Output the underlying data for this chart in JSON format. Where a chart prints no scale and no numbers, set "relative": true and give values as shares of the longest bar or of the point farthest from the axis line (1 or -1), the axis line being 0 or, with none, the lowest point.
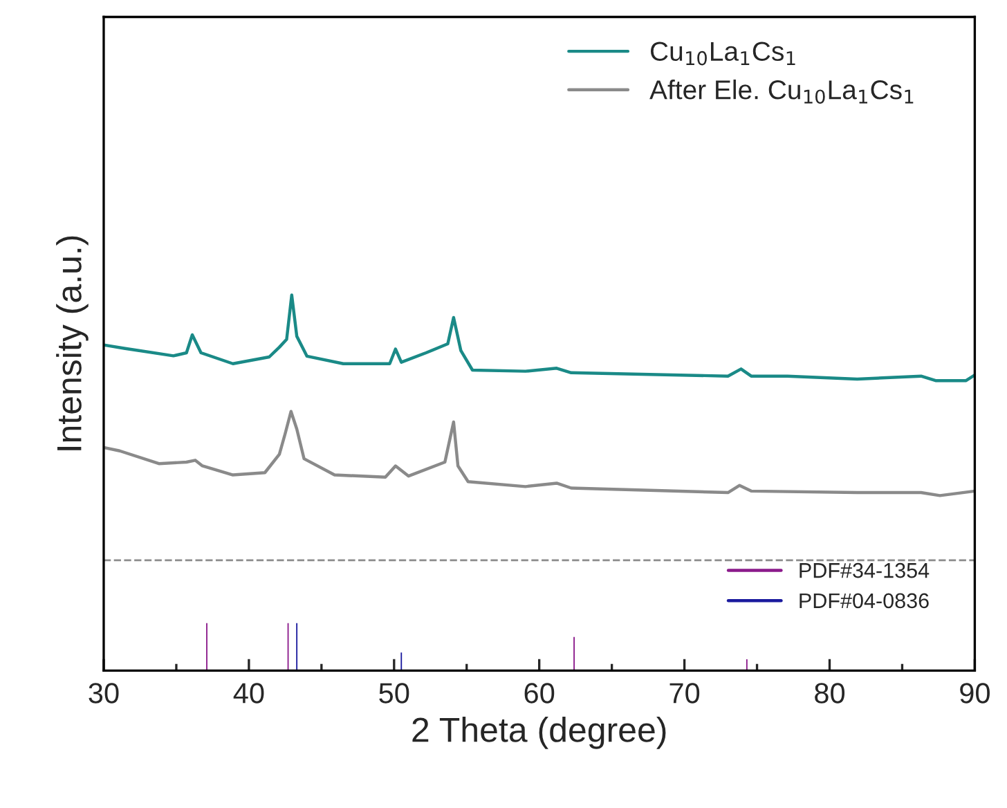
{
  "chart_data": {
    "type": "line",
    "relative": true,
    "xlabel": "2 Theta (degree)",
    "ylabel": "Intensity (a.u.)",
    "xlim": [
      30,
      90
    ],
    "xticks": [
      30,
      40,
      50,
      60,
      70,
      80,
      90
    ],
    "tick_labels": "x",
    "grid": false,
    "legend": "top right",
    "line_style": "solid",
    "marker": "none",
    "ref_lines": [
      {
        "axis": "y",
        "value": 0.294,
        "color": "#8c8c8c",
        "line_style": "dashed"
      }
    ],
    "series": [
      {
        "name": "Cu$_{10}$La$_{1}$Cs$_{1}$",
        "color": "#1a8a87",
        "x": [
          30,
          31.4,
          34.8,
          35.7,
          36.1,
          36.7,
          38.9,
          41.4,
          42.1,
          42.6,
          42.95,
          43.3,
          44.0,
          46.5,
          49.7,
          50.1,
          50.5,
          52.2,
          53.7,
          54.1,
          54.6,
          55.4,
          59.05,
          61.2,
          62.2,
          73.0,
          73.9,
          74.6,
          77.1,
          81.9,
          86.3,
          87.3,
          89.4,
          90
        ],
        "values": [
          0.867,
          0.858,
          0.838,
          0.846,
          0.894,
          0.846,
          0.817,
          0.835,
          0.861,
          0.882,
          1.0,
          0.89,
          0.837,
          0.817,
          0.817,
          0.856,
          0.821,
          0.846,
          0.87,
          0.94,
          0.852,
          0.8,
          0.797,
          0.805,
          0.793,
          0.784,
          0.803,
          0.784,
          0.784,
          0.776,
          0.784,
          0.772,
          0.772,
          0.787
        ]
      },
      {
        "name": "After Ele. Cu$_{10}$La$_{1}$Cs$_{1}$",
        "color": "#8a8a8a",
        "x": [
          30,
          31.1,
          33.8,
          35.7,
          36.3,
          36.8,
          38.9,
          41.1,
          42.1,
          42.5,
          42.9,
          43.3,
          43.8,
          45.9,
          49.4,
          50.1,
          51.0,
          53.5,
          54.1,
          54.4,
          55.1,
          59.05,
          61.2,
          62.2,
          73.0,
          73.8,
          74.6,
          81.9,
          86.3,
          87.6,
          90
        ],
        "values": [
          0.594,
          0.585,
          0.551,
          0.555,
          0.56,
          0.545,
          0.521,
          0.527,
          0.576,
          0.631,
          0.69,
          0.643,
          0.564,
          0.521,
          0.515,
          0.545,
          0.518,
          0.555,
          0.662,
          0.545,
          0.503,
          0.49,
          0.499,
          0.486,
          0.474,
          0.493,
          0.478,
          0.474,
          0.474,
          0.466,
          0.478
        ]
      },
      {
        "name": "PDF#34-1354",
        "type": "bar",
        "color": "#8b1a8b",
        "x": [
          37.1,
          42.7,
          62.4,
          74.3
        ],
        "values": [
          0.129,
          0.129,
          0.092,
          0.033
        ]
      },
      {
        "name": "PDF#04-0836",
        "type": "bar",
        "color": "#1a1a9e",
        "x": [
          43.3,
          50.5
        ],
        "values": [
          0.129,
          0.051
        ]
      }
    ]
  }
}
